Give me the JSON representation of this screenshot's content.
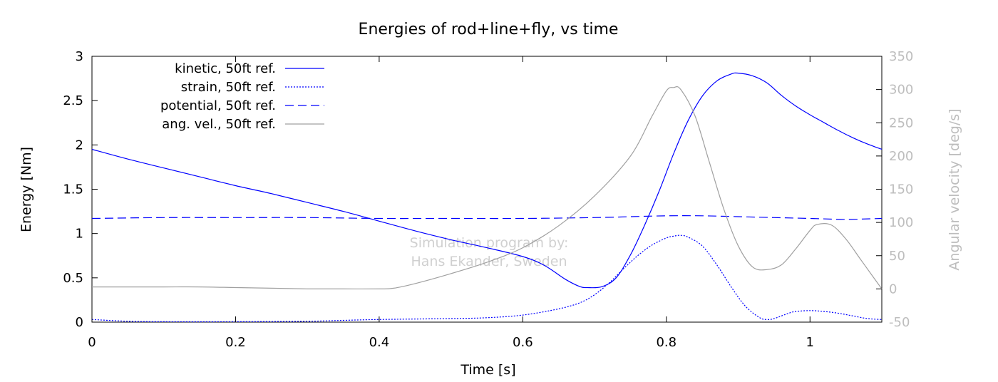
{
  "chart_data": {
    "type": "line",
    "title": "Energies of rod+line+fly, vs time",
    "xlabel": "Time [s]",
    "ylabel": "Energy [Nm]",
    "y2label": "Angular velocity [deg/s]",
    "xlim": [
      0,
      1.1
    ],
    "ylim": [
      0,
      3
    ],
    "y2lim": [
      -50,
      350
    ],
    "xticks": [
      0,
      0.2,
      0.4,
      0.6,
      0.8,
      1
    ],
    "xtick_labels": [
      "0",
      "0.2",
      "0.4",
      "0.6",
      "0.8",
      "1"
    ],
    "yticks": [
      0,
      0.5,
      1,
      1.5,
      2,
      2.5,
      3
    ],
    "ytick_labels": [
      "0",
      "0.5",
      "1",
      "1.5",
      "2",
      "2.5",
      "3"
    ],
    "y2ticks": [
      -50,
      0,
      50,
      100,
      150,
      200,
      250,
      300,
      350
    ],
    "y2tick_labels": [
      "-50",
      "0",
      "50",
      "100",
      "150",
      "200",
      "250",
      "300",
      "350"
    ],
    "legend_position": "top-left",
    "watermark": [
      "Simulation program by:",
      "Hans Ekander, Sweden"
    ],
    "series": [
      {
        "name": "kinetic, 50ft ref.",
        "axis": "left",
        "color": "#0000ff",
        "dash": "solid",
        "points": [
          [
            0,
            1.95
          ],
          [
            0.05,
            1.84
          ],
          [
            0.1,
            1.74
          ],
          [
            0.15,
            1.64
          ],
          [
            0.2,
            1.54
          ],
          [
            0.25,
            1.45
          ],
          [
            0.3,
            1.35
          ],
          [
            0.35,
            1.25
          ],
          [
            0.4,
            1.14
          ],
          [
            0.45,
            1.03
          ],
          [
            0.5,
            0.93
          ],
          [
            0.55,
            0.84
          ],
          [
            0.6,
            0.74
          ],
          [
            0.63,
            0.64
          ],
          [
            0.66,
            0.48
          ],
          [
            0.68,
            0.4
          ],
          [
            0.69,
            0.39
          ],
          [
            0.71,
            0.4
          ],
          [
            0.73,
            0.5
          ],
          [
            0.75,
            0.76
          ],
          [
            0.77,
            1.1
          ],
          [
            0.79,
            1.48
          ],
          [
            0.81,
            1.9
          ],
          [
            0.83,
            2.27
          ],
          [
            0.85,
            2.55
          ],
          [
            0.87,
            2.72
          ],
          [
            0.89,
            2.8
          ],
          [
            0.9,
            2.81
          ],
          [
            0.92,
            2.78
          ],
          [
            0.94,
            2.7
          ],
          [
            0.96,
            2.56
          ],
          [
            0.98,
            2.44
          ],
          [
            1.0,
            2.34
          ],
          [
            1.02,
            2.25
          ],
          [
            1.04,
            2.16
          ],
          [
            1.06,
            2.08
          ],
          [
            1.08,
            2.01
          ],
          [
            1.1,
            1.95
          ]
        ]
      },
      {
        "name": "strain, 50ft ref.",
        "axis": "left",
        "color": "#0000ff",
        "dash": "dotted",
        "points": [
          [
            0,
            0.03
          ],
          [
            0.05,
            0.01
          ],
          [
            0.1,
            0.005
          ],
          [
            0.2,
            0.005
          ],
          [
            0.3,
            0.01
          ],
          [
            0.35,
            0.02
          ],
          [
            0.4,
            0.03
          ],
          [
            0.5,
            0.04
          ],
          [
            0.55,
            0.05
          ],
          [
            0.6,
            0.08
          ],
          [
            0.65,
            0.15
          ],
          [
            0.68,
            0.22
          ],
          [
            0.7,
            0.31
          ],
          [
            0.72,
            0.44
          ],
          [
            0.74,
            0.6
          ],
          [
            0.76,
            0.75
          ],
          [
            0.78,
            0.87
          ],
          [
            0.8,
            0.95
          ],
          [
            0.81,
            0.97
          ],
          [
            0.82,
            0.98
          ],
          [
            0.83,
            0.96
          ],
          [
            0.85,
            0.86
          ],
          [
            0.87,
            0.65
          ],
          [
            0.89,
            0.4
          ],
          [
            0.91,
            0.18
          ],
          [
            0.93,
            0.05
          ],
          [
            0.94,
            0.03
          ],
          [
            0.95,
            0.04
          ],
          [
            0.97,
            0.1
          ],
          [
            0.98,
            0.12
          ],
          [
            1.0,
            0.13
          ],
          [
            1.02,
            0.12
          ],
          [
            1.04,
            0.1
          ],
          [
            1.06,
            0.07
          ],
          [
            1.08,
            0.04
          ],
          [
            1.1,
            0.03
          ]
        ]
      },
      {
        "name": "potential, 50ft ref.",
        "axis": "left",
        "color": "#0000ff",
        "dash": "dashed",
        "points": [
          [
            0,
            1.17
          ],
          [
            0.1,
            1.18
          ],
          [
            0.2,
            1.18
          ],
          [
            0.3,
            1.18
          ],
          [
            0.4,
            1.17
          ],
          [
            0.5,
            1.17
          ],
          [
            0.6,
            1.17
          ],
          [
            0.7,
            1.18
          ],
          [
            0.75,
            1.19
          ],
          [
            0.8,
            1.2
          ],
          [
            0.85,
            1.2
          ],
          [
            0.9,
            1.19
          ],
          [
            0.95,
            1.18
          ],
          [
            1.0,
            1.17
          ],
          [
            1.05,
            1.16
          ],
          [
            1.1,
            1.17
          ]
        ]
      },
      {
        "name": "ang. vel., 50ft ref.",
        "axis": "right",
        "color": "#a0a0a0",
        "dash": "solid",
        "points": [
          [
            0,
            3
          ],
          [
            0.05,
            3
          ],
          [
            0.1,
            3
          ],
          [
            0.15,
            3
          ],
          [
            0.2,
            2
          ],
          [
            0.25,
            1
          ],
          [
            0.3,
            0
          ],
          [
            0.35,
            0
          ],
          [
            0.4,
            0
          ],
          [
            0.42,
            1
          ],
          [
            0.45,
            8
          ],
          [
            0.5,
            23
          ],
          [
            0.55,
            40
          ],
          [
            0.6,
            62
          ],
          [
            0.65,
            95
          ],
          [
            0.7,
            140
          ],
          [
            0.75,
            200
          ],
          [
            0.78,
            260
          ],
          [
            0.8,
            298
          ],
          [
            0.81,
            303
          ],
          [
            0.82,
            300
          ],
          [
            0.84,
            260
          ],
          [
            0.86,
            190
          ],
          [
            0.88,
            120
          ],
          [
            0.9,
            65
          ],
          [
            0.92,
            33
          ],
          [
            0.94,
            29
          ],
          [
            0.96,
            36
          ],
          [
            0.98,
            60
          ],
          [
            1.0,
            88
          ],
          [
            1.01,
            97
          ],
          [
            1.03,
            96
          ],
          [
            1.05,
            75
          ],
          [
            1.07,
            45
          ],
          [
            1.09,
            15
          ],
          [
            1.1,
            0
          ]
        ]
      }
    ]
  }
}
